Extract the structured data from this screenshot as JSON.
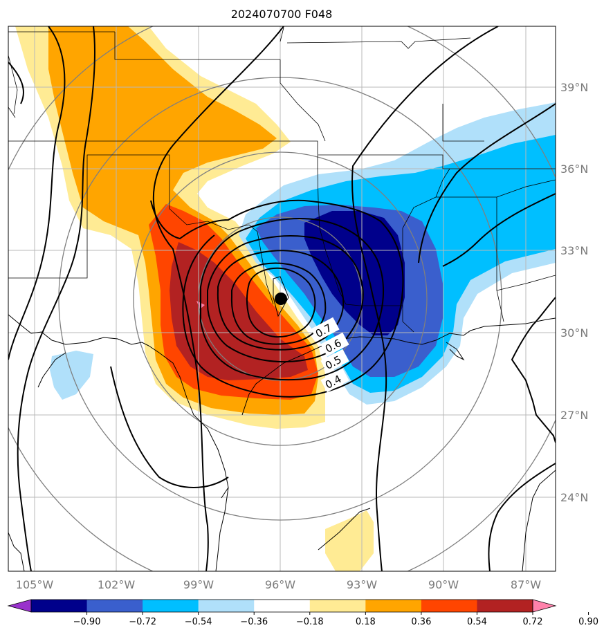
{
  "title": "2024070700 F048",
  "lat_labels": [
    "39°N",
    "36°N",
    "33°N",
    "30°N",
    "27°N",
    "24°N"
  ],
  "lon_labels": [
    "105°W",
    "102°W",
    "99°W",
    "96°W",
    "93°W",
    "90°W",
    "87°W"
  ],
  "colorbar": {
    "ticks": [
      "−0.90",
      "−0.72",
      "−0.54",
      "−0.36",
      "−0.18",
      "0.18",
      "0.36",
      "0.54",
      "0.72",
      "0.90"
    ],
    "colors": [
      "#9932cc",
      "#00008b",
      "#3a5fcd",
      "#00bfff",
      "#b0e0fa",
      "#ffffff",
      "#ffeb94",
      "#ffa500",
      "#ff4500",
      "#b22222",
      "#ff82ab"
    ]
  },
  "contour_labels": [
    "0.7",
    "0.6",
    "0.5",
    "0.4"
  ],
  "center_marker": "storm-center"
}
